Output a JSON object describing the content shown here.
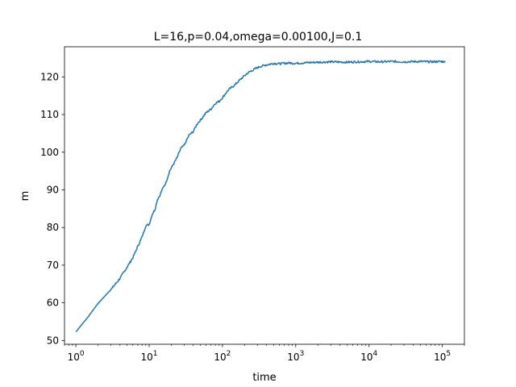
{
  "chart_data": {
    "type": "line",
    "title": "L=16,p=0.04,omega=0.00100,J=0.1",
    "xlabel": "time",
    "ylabel": "m",
    "xscale": "log",
    "xlim": [
      0.7,
      200000
    ],
    "ylim": [
      49,
      128
    ],
    "grid": false,
    "line_color": "#1f77b4",
    "x_ticks": [
      {
        "value": 1,
        "base": "10",
        "exp": "0"
      },
      {
        "value": 10,
        "base": "10",
        "exp": "1"
      },
      {
        "value": 100,
        "base": "10",
        "exp": "2"
      },
      {
        "value": 1000,
        "base": "10",
        "exp": "3"
      },
      {
        "value": 10000,
        "base": "10",
        "exp": "4"
      },
      {
        "value": 100000,
        "base": "10",
        "exp": "5"
      }
    ],
    "y_ticks": [
      {
        "value": 50,
        "label": "50"
      },
      {
        "value": 60,
        "label": "60"
      },
      {
        "value": 70,
        "label": "70"
      },
      {
        "value": 80,
        "label": "80"
      },
      {
        "value": 90,
        "label": "90"
      },
      {
        "value": 100,
        "label": "100"
      },
      {
        "value": 110,
        "label": "110"
      },
      {
        "value": 120,
        "label": "120"
      }
    ],
    "series": [
      {
        "x": [
          1,
          1.5,
          2,
          3,
          4,
          5,
          6,
          7,
          8,
          9,
          10,
          11,
          12,
          13,
          14,
          15,
          17,
          19,
          21,
          24,
          27,
          30,
          35,
          40,
          45,
          50,
          60,
          70,
          80,
          90,
          100,
          120,
          150,
          180,
          220,
          270,
          330,
          400,
          500,
          600,
          800,
          1000,
          1500,
          2000,
          3000,
          5000,
          7000,
          10000,
          15000,
          20000,
          30000,
          50000,
          70000,
          100000,
          110000
        ],
        "y": [
          52.3,
          56.5,
          59.8,
          63.5,
          66.5,
          69.5,
          72.0,
          75.0,
          77.5,
          80.5,
          80.8,
          83.5,
          84.8,
          87.5,
          88.5,
          90.0,
          92.0,
          95.0,
          96.5,
          98.5,
          101.0,
          101.8,
          104.5,
          105.5,
          107.5,
          108.5,
          110.5,
          111.5,
          113.0,
          113.5,
          114.5,
          116.5,
          118.0,
          119.5,
          121.0,
          122.0,
          122.8,
          123.2,
          123.6,
          123.5,
          123.7,
          123.6,
          123.8,
          123.9,
          124.0,
          123.9,
          124.0,
          124.1,
          124.0,
          124.1,
          124.0,
          124.1,
          124.0,
          124.1,
          123.9
        ]
      }
    ]
  }
}
